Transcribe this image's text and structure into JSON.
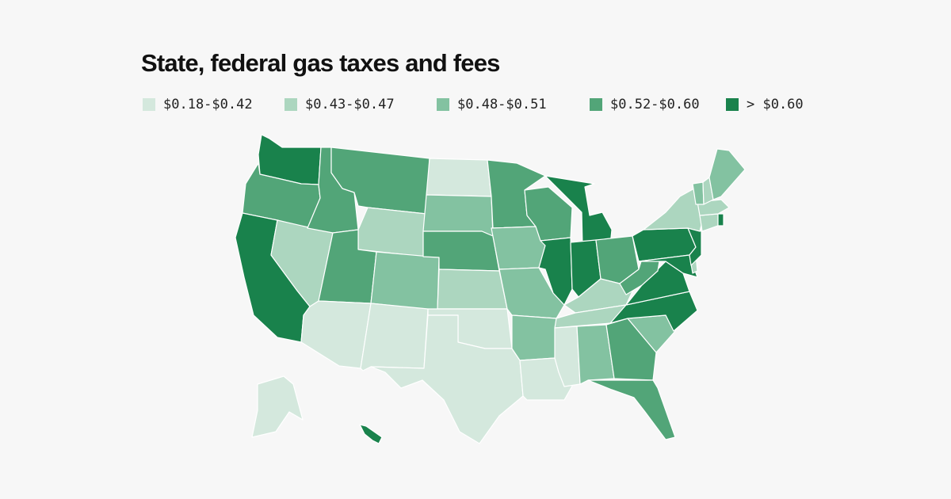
{
  "title": "State, federal gas taxes and fees",
  "legend": [
    {
      "label": "$0.18-$0.42",
      "color": "#d4e8dd"
    },
    {
      "label": "$0.43-$0.47",
      "color": "#acd6bf"
    },
    {
      "label": "$0.48-$0.51",
      "color": "#83c2a1"
    },
    {
      "label": "$0.52-$0.60",
      "color": "#52a578"
    },
    {
      "label": "> $0.60",
      "color": "#19824c"
    }
  ],
  "states": [
    {
      "id": "WA",
      "bin": 4
    },
    {
      "id": "OR",
      "bin": 3
    },
    {
      "id": "CA",
      "bin": 4
    },
    {
      "id": "NV",
      "bin": 1
    },
    {
      "id": "ID",
      "bin": 3
    },
    {
      "id": "MT",
      "bin": 3
    },
    {
      "id": "WY",
      "bin": 1
    },
    {
      "id": "UT",
      "bin": 3
    },
    {
      "id": "AZ",
      "bin": 0
    },
    {
      "id": "CO",
      "bin": 2
    },
    {
      "id": "NM",
      "bin": 0
    },
    {
      "id": "ND",
      "bin": 0
    },
    {
      "id": "SD",
      "bin": 2
    },
    {
      "id": "NE",
      "bin": 3
    },
    {
      "id": "KS",
      "bin": 1
    },
    {
      "id": "OK",
      "bin": 0
    },
    {
      "id": "TX",
      "bin": 0
    },
    {
      "id": "MN",
      "bin": 3
    },
    {
      "id": "IA",
      "bin": 2
    },
    {
      "id": "MO",
      "bin": 2
    },
    {
      "id": "AR",
      "bin": 2
    },
    {
      "id": "LA",
      "bin": 0
    },
    {
      "id": "WI",
      "bin": 3
    },
    {
      "id": "IL",
      "bin": 4
    },
    {
      "id": "MI",
      "bin": 4
    },
    {
      "id": "IN",
      "bin": 4
    },
    {
      "id": "OH",
      "bin": 3
    },
    {
      "id": "KY",
      "bin": 1
    },
    {
      "id": "TN",
      "bin": 1
    },
    {
      "id": "MS",
      "bin": 0
    },
    {
      "id": "AL",
      "bin": 2
    },
    {
      "id": "GA",
      "bin": 3
    },
    {
      "id": "FL",
      "bin": 3
    },
    {
      "id": "SC",
      "bin": 2
    },
    {
      "id": "NC",
      "bin": 4
    },
    {
      "id": "VA",
      "bin": 4
    },
    {
      "id": "WV",
      "bin": 3
    },
    {
      "id": "PA",
      "bin": 4
    },
    {
      "id": "NY",
      "bin": 1
    },
    {
      "id": "VT",
      "bin": 2
    },
    {
      "id": "NH",
      "bin": 1
    },
    {
      "id": "ME",
      "bin": 2
    },
    {
      "id": "MA",
      "bin": 1
    },
    {
      "id": "CT",
      "bin": 1
    },
    {
      "id": "RI",
      "bin": 4
    },
    {
      "id": "NJ",
      "bin": 4
    },
    {
      "id": "DE",
      "bin": 1
    },
    {
      "id": "MD",
      "bin": 4
    },
    {
      "id": "AK",
      "bin": 0
    },
    {
      "id": "HI",
      "bin": 4
    }
  ]
}
